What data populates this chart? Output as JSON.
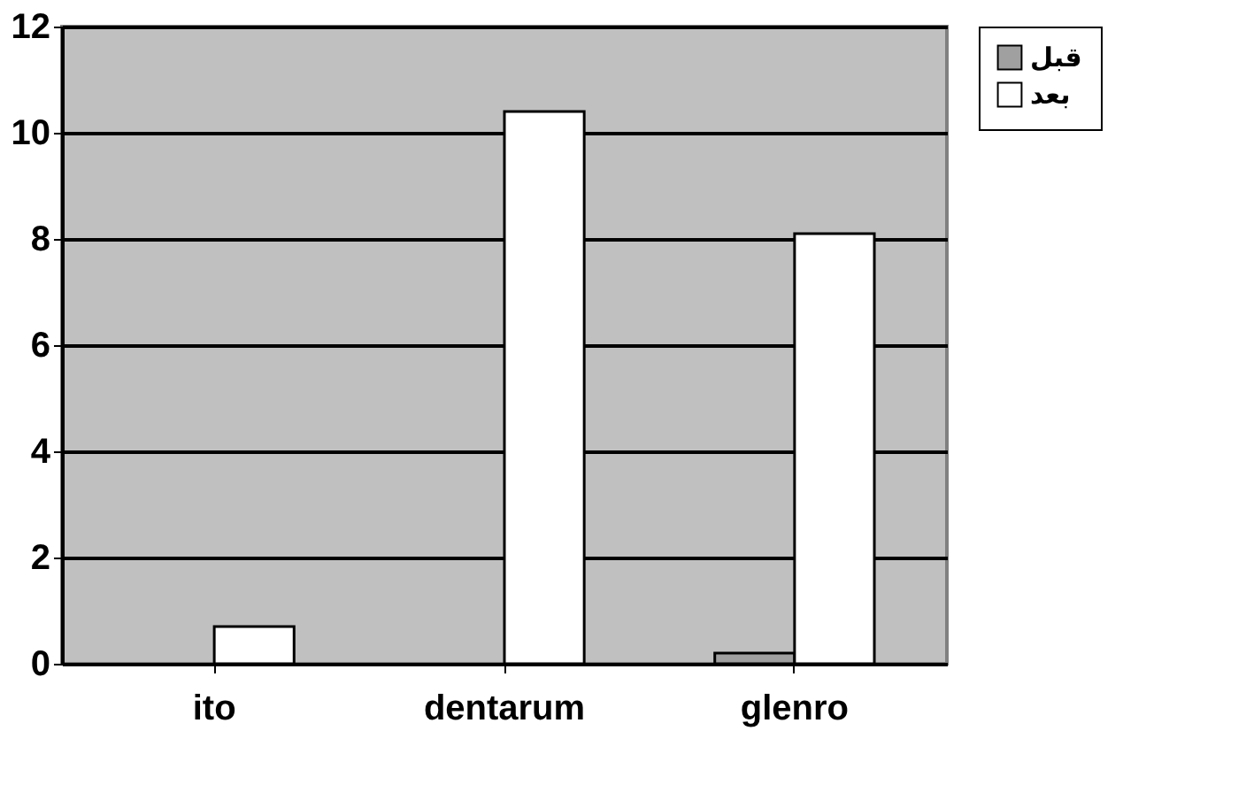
{
  "chart_data": {
    "type": "bar",
    "categories": [
      "ito",
      "dentarum",
      "glenro"
    ],
    "series": [
      {
        "name": "قبل",
        "color": "#a0a0a0",
        "values": [
          0,
          0,
          0.2
        ]
      },
      {
        "name": "بعد",
        "color": "#ffffff",
        "values": [
          0.7,
          10.4,
          8.1
        ]
      }
    ],
    "ylim": [
      0,
      12
    ],
    "yticks": [
      0,
      2,
      4,
      6,
      8,
      10,
      12
    ],
    "grid": "y",
    "legend": "right"
  }
}
